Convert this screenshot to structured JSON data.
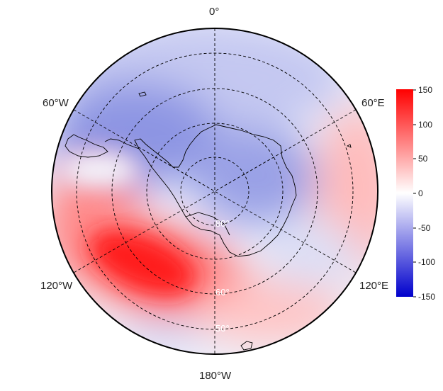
{
  "map": {
    "projection": "south polar stereographic",
    "lon_labels": {
      "top": "0°",
      "upper_left": "60°W",
      "upper_right": "60°E",
      "lower_left": "120°W",
      "lower_right": "120°E",
      "bottom": "180°W"
    },
    "lat_labels": [
      "80°",
      "60°",
      "50°"
    ]
  },
  "colorbar": {
    "ticks": [
      "150",
      "100",
      "50",
      "0",
      "-50",
      "-100",
      "-150"
    ],
    "range": [
      -150,
      150
    ],
    "colors": {
      "max": "#ff0000",
      "mid": "#ffffff",
      "min": "#0000cc"
    }
  },
  "field_colors": {
    "red_strong": "#ff1a1a",
    "red_mid": "#ff6e6e",
    "red_light": "#ffbcbc",
    "blue_mid": "#8d95e3",
    "blue_light": "#c4c8f1",
    "neutral": "#f4f4fb"
  }
}
